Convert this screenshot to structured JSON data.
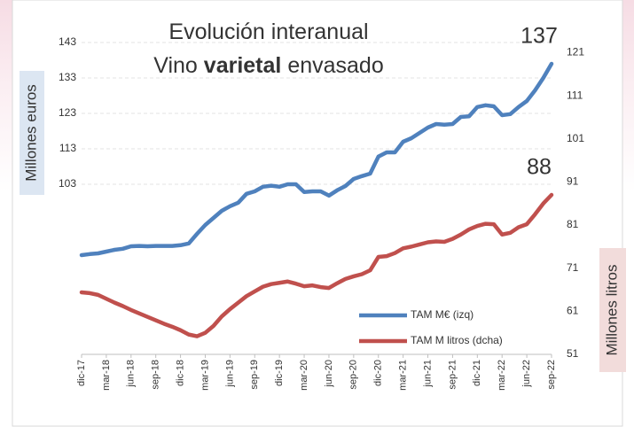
{
  "chart_data": {
    "type": "line",
    "title": {
      "line1": "Evolución interanual",
      "line2": [
        "Vino",
        "varietal",
        "envasado"
      ]
    },
    "ylabel": "Millones euros",
    "y2label": "Millones litros",
    "categories": [
      "dic-17",
      null,
      null,
      "mar-18",
      null,
      null,
      "jun-18",
      null,
      null,
      "sep-18",
      null,
      null,
      "dic-18",
      null,
      null,
      "mar-19",
      null,
      null,
      "jun-19",
      null,
      null,
      "sep-19",
      null,
      null,
      "dic-19",
      null,
      null,
      "mar-20",
      null,
      null,
      "jun-20",
      null,
      null,
      "sep-20",
      null,
      null,
      "dic-20",
      null,
      null,
      "mar-21",
      null,
      null,
      "jun-21",
      null,
      null,
      "sep-21",
      null,
      null,
      "dic-21",
      null,
      null,
      "mar-22",
      null,
      null,
      "jun-22",
      null,
      null,
      "sep-22"
    ],
    "series": [
      {
        "name": "TAM M€ (izq)",
        "color": "#4f81bd",
        "axis": "y",
        "values": [
          83.0,
          83.3,
          83.5,
          84.0,
          84.5,
          84.8,
          85.5,
          85.6,
          85.5,
          85.6,
          85.6,
          85.6,
          85.8,
          86.3,
          89.0,
          91.5,
          93.5,
          95.5,
          96.8,
          97.8,
          100.3,
          101.0,
          102.3,
          102.6,
          102.3,
          103.0,
          103.0,
          100.8,
          101.0,
          101.0,
          99.8,
          101.3,
          102.5,
          104.5,
          105.3,
          106.0,
          110.8,
          112.0,
          112.0,
          115.0,
          116.0,
          117.5,
          119.0,
          120.0,
          119.8,
          120.0,
          122.0,
          122.2,
          124.8,
          125.3,
          125.0,
          122.5,
          122.8,
          124.8,
          126.5,
          129.5,
          133.0,
          137
        ]
      },
      {
        "name": "TAM M litros (dcha)",
        "color": "#c0504d",
        "axis": "y2",
        "values": [
          65.4,
          65.2,
          64.8,
          63.9,
          63.0,
          62.2,
          61.3,
          60.5,
          59.7,
          58.9,
          58.1,
          57.4,
          56.6,
          55.6,
          55.2,
          56.0,
          57.6,
          59.8,
          61.5,
          63.0,
          64.5,
          65.6,
          66.7,
          67.3,
          67.6,
          67.9,
          67.4,
          66.8,
          67.0,
          66.6,
          66.4,
          67.5,
          68.5,
          69.1,
          69.6,
          70.5,
          73.6,
          73.8,
          74.5,
          75.6,
          76.0,
          76.5,
          77.0,
          77.2,
          77.1,
          77.8,
          78.8,
          80.0,
          80.8,
          81.3,
          81.2,
          78.8,
          79.2,
          80.5,
          81.2,
          83.5,
          86.0,
          88
        ]
      }
    ],
    "ylim": [
      55,
      145
    ],
    "yticks": [
      103,
      113,
      123,
      133,
      143
    ],
    "y2lim": [
      51,
      125
    ],
    "y2ticks": [
      51,
      61,
      71,
      81,
      91,
      101,
      111,
      121
    ],
    "grid": true,
    "legend": "lower right"
  }
}
